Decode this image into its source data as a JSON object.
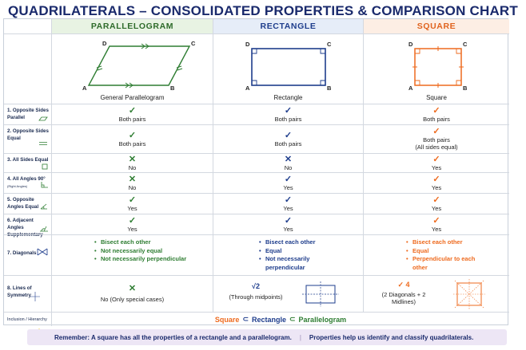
{
  "title": "QUADRILATERALS – CONSOLIDATED PROPERTIES & COMPARISON CHART",
  "columns": [
    {
      "label": "PARALLELOGRAM",
      "shape_name": "General Parallelogram",
      "color": "#2e6b2a"
    },
    {
      "label": "RECTANGLE",
      "shape_name": "Rectangle",
      "color": "#1e3d8c"
    },
    {
      "label": "SQUARE",
      "shape_name": "Square",
      "color": "#e0631e"
    }
  ],
  "vertex_labels": {
    "a": "A",
    "b": "B",
    "c": "C",
    "d": "D"
  },
  "rows": [
    {
      "label": "1. Opposite Sides Parallel",
      "marks": [
        "check",
        "check",
        "check"
      ],
      "text": [
        "Both pairs",
        "Both pairs",
        "Both pairs"
      ]
    },
    {
      "label": "2. Opposite Sides Equal",
      "marks": [
        "check",
        "check",
        "check"
      ],
      "text": [
        "Both pairs",
        "Both pairs",
        "Both pairs"
      ],
      "text_extra": "(All sides equal)"
    },
    {
      "label": "3. All Sides Equal",
      "marks": [
        "cross",
        "cross",
        "check"
      ],
      "text": [
        "No",
        "No",
        "Yes"
      ]
    },
    {
      "label": "4. All Angles 90°",
      "label_small": "(Right Angles)",
      "marks": [
        "cross",
        "check",
        "check"
      ],
      "text": [
        "No",
        "Yes",
        "Yes"
      ]
    },
    {
      "label": "5. Opposite Angles Equal",
      "marks": [
        "check",
        "check",
        "check"
      ],
      "text": [
        "Yes",
        "Yes",
        "Yes"
      ]
    },
    {
      "label": "6. Adjacent Angles Supplementary",
      "marks": [
        "check",
        "check",
        "check"
      ],
      "text": [
        "Yes",
        "Yes",
        "Yes"
      ]
    }
  ],
  "diagonals": {
    "label": "7. Diagonals",
    "parallelogram": [
      "Bisect each other",
      "Not necessarily equal",
      "Not necessarily perpendicular"
    ],
    "rectangle": [
      "Bisect each other",
      "Equal",
      "Not necessarily perpendicular"
    ],
    "square": [
      "Bisect each other",
      "Equal",
      "Perpendicular to each other"
    ]
  },
  "symmetry": {
    "label": "8. Lines of Symmetry",
    "parallelogram": {
      "mark": "✕",
      "text": "No (Only special cases)"
    },
    "rectangle": {
      "mark": "√2",
      "text": "(Through midpoints)"
    },
    "square": {
      "mark": "✓ 4",
      "text": "(2 Diagonals + 2 Midlines)"
    }
  },
  "hierarchy": {
    "label": "Inclusion / Hierarchy",
    "square": "Square",
    "rectangle": "Rectangle",
    "parallelogram": "Parallelogram",
    "subset": "⊂"
  },
  "footer": {
    "left": "Remember: A square has all the properties of a rectangle and a parallelogram.",
    "divider": "|",
    "right": "Properties help us identify and classify quadrilaterals."
  }
}
